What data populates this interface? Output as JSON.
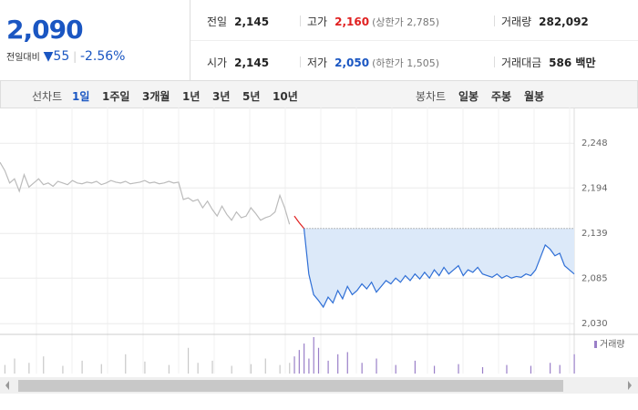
{
  "header": {
    "price": "2,090",
    "change_label": "전일대비",
    "change": "55",
    "change_pct": "-2.56%"
  },
  "stats": [
    [
      {
        "label": "전일",
        "value": "2,145"
      },
      {
        "label": "고가",
        "value": "2,160",
        "note": "(상한가 2,785)"
      },
      {
        "label": "거래량",
        "value": "282,092"
      }
    ],
    [
      {
        "label": "시가",
        "value": "2,145"
      },
      {
        "label": "저가",
        "value": "2,050",
        "note": "(하한가 1,505)"
      },
      {
        "label": "거래대금",
        "value": "586 백만"
      }
    ]
  ],
  "tabs": {
    "line_label": "선차트",
    "periods": [
      "1일",
      "1주일",
      "3개월",
      "1년",
      "3년",
      "5년",
      "10년"
    ],
    "candle_label": "봉차트",
    "candles": [
      "일봉",
      "주봉",
      "월봉"
    ]
  },
  "chart_data": [
    {
      "type": "line",
      "ylim": [
        2017,
        2278
      ],
      "yticks": [
        {
          "value": 2030,
          "label": "2,030"
        },
        {
          "value": 2085,
          "label": "2,085"
        },
        {
          "value": 2139,
          "label": "2,139"
        },
        {
          "value": 2194,
          "label": "2,194"
        },
        {
          "value": 2248,
          "label": "2,248"
        }
      ],
      "grid": true,
      "baseline": 2145,
      "series": [
        {
          "color": "#bbbbbb",
          "values": [
            2225,
            2215,
            2200,
            2205,
            2190,
            2210,
            2195,
            2200,
            2205,
            2198,
            2200,
            2196,
            2202,
            2200,
            2198,
            2203,
            2200,
            2199,
            2201,
            2200,
            2202,
            2198,
            2200,
            2203,
            2201,
            2200,
            2202,
            2199,
            2200,
            2201,
            2203,
            2200,
            2201,
            2199,
            2200,
            2202,
            2200,
            2201,
            2180,
            2182,
            2178,
            2180,
            2170,
            2178,
            2168,
            2160,
            2172,
            2162,
            2155,
            2165,
            2158,
            2160,
            2170,
            2163,
            2155,
            2158,
            2160,
            2165,
            2185,
            2170,
            2150,
            null,
            null,
            null,
            null,
            null,
            null,
            null,
            null,
            null,
            null,
            null,
            null,
            null,
            null,
            null,
            null,
            null,
            null,
            null,
            null,
            null,
            null,
            null,
            null,
            null,
            null,
            null,
            null,
            null,
            null,
            null,
            null,
            null,
            null,
            null,
            null,
            null,
            null,
            null,
            null,
            null,
            null,
            null,
            null,
            null,
            null,
            null,
            null,
            null,
            null,
            null,
            null,
            null,
            null,
            null,
            null,
            null,
            null,
            null
          ]
        },
        {
          "color": "#e02020",
          "values": [
            null,
            null,
            null,
            null,
            null,
            null,
            null,
            null,
            null,
            null,
            null,
            null,
            null,
            null,
            null,
            null,
            null,
            null,
            null,
            null,
            null,
            null,
            null,
            null,
            null,
            null,
            null,
            null,
            null,
            null,
            null,
            null,
            null,
            null,
            null,
            null,
            null,
            null,
            null,
            null,
            null,
            null,
            null,
            null,
            null,
            null,
            null,
            null,
            null,
            null,
            null,
            null,
            null,
            null,
            null,
            null,
            null,
            null,
            null,
            null,
            null,
            2160,
            2152,
            2145,
            null,
            null,
            null,
            null,
            null,
            null,
            null,
            null,
            null,
            null,
            null,
            null,
            null,
            null,
            null,
            null,
            null,
            null,
            null,
            null,
            null,
            null,
            null,
            null,
            null,
            null,
            null,
            null,
            null,
            null,
            null,
            null,
            null,
            null,
            null,
            null,
            null,
            null,
            null,
            null,
            null,
            null,
            null,
            null,
            null,
            null,
            null,
            null,
            null,
            null,
            null,
            null,
            null,
            null,
            null,
            null
          ]
        },
        {
          "color": "#2f6fd6",
          "values": [
            null,
            null,
            null,
            null,
            null,
            null,
            null,
            null,
            null,
            null,
            null,
            null,
            null,
            null,
            null,
            null,
            null,
            null,
            null,
            null,
            null,
            null,
            null,
            null,
            null,
            null,
            null,
            null,
            null,
            null,
            null,
            null,
            null,
            null,
            null,
            null,
            null,
            null,
            null,
            null,
            null,
            null,
            null,
            null,
            null,
            null,
            null,
            null,
            null,
            null,
            null,
            null,
            null,
            null,
            null,
            null,
            null,
            null,
            null,
            null,
            null,
            null,
            null,
            2145,
            2090,
            2065,
            2058,
            2050,
            2062,
            2055,
            2070,
            2060,
            2075,
            2065,
            2070,
            2078,
            2072,
            2080,
            2068,
            2075,
            2082,
            2078,
            2085,
            2080,
            2088,
            2082,
            2090,
            2084,
            2092,
            2085,
            2095,
            2088,
            2098,
            2090,
            2095,
            2100,
            2088,
            2095,
            2092,
            2098,
            2090,
            2088,
            2086,
            2090,
            2085,
            2088,
            2085,
            2087,
            2086,
            2090,
            2088,
            2095,
            2110,
            2125,
            2120,
            2112,
            2115,
            2100,
            2095,
            2090
          ]
        }
      ]
    },
    {
      "type": "bar",
      "legend": "거래량",
      "xlim": [
        0,
        119
      ],
      "series": [
        {
          "color": "#c8c8c8",
          "x": [
            1,
            3,
            6,
            9,
            13,
            17,
            21,
            26,
            30,
            35,
            39,
            41,
            44,
            48,
            52,
            55,
            58,
            60
          ],
          "values": [
            20,
            35,
            25,
            40,
            18,
            30,
            22,
            45,
            28,
            20,
            60,
            25,
            30,
            18,
            22,
            35,
            20,
            25
          ]
        },
        {
          "color": "#9a7fc8",
          "x": [
            61,
            62,
            63,
            64,
            65,
            66,
            68,
            70,
            72,
            75,
            78,
            82,
            86,
            90,
            95,
            100,
            105,
            110,
            114,
            116,
            119
          ],
          "values": [
            40,
            55,
            70,
            35,
            85,
            60,
            30,
            45,
            50,
            25,
            35,
            20,
            30,
            18,
            22,
            15,
            20,
            18,
            25,
            20,
            45
          ]
        }
      ]
    }
  ]
}
